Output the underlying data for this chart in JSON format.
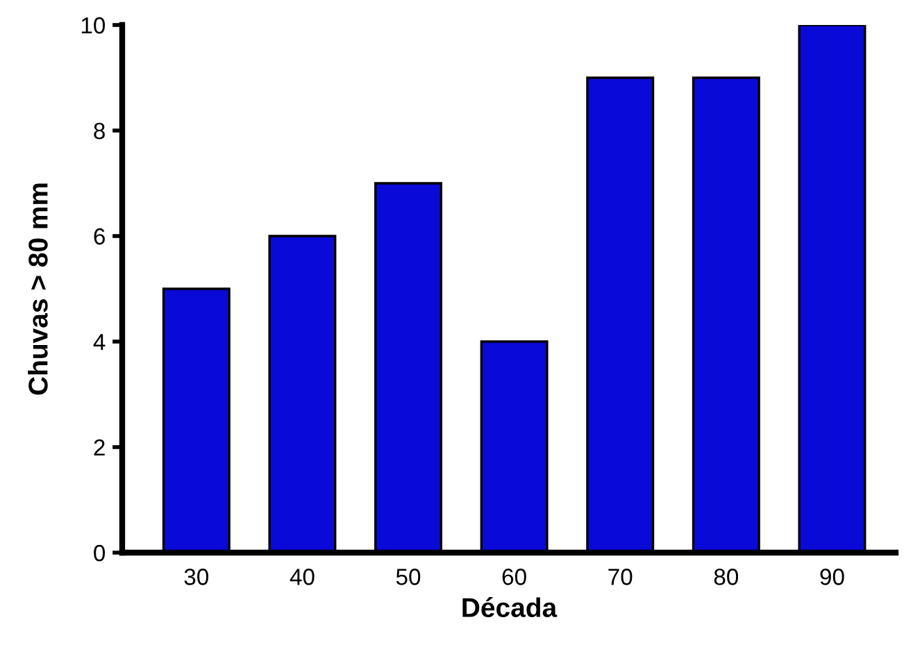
{
  "chart_data": {
    "type": "bar",
    "xlabel": "Década",
    "ylabel": "Chuvas > 80 mm",
    "categories": [
      "30",
      "40",
      "50",
      "60",
      "70",
      "80",
      "90"
    ],
    "values": [
      5,
      6,
      7,
      4,
      9,
      9,
      10
    ],
    "color": "#0a0ad8",
    "ylim": [
      0,
      10
    ],
    "yticks": [
      0,
      2,
      4,
      6,
      8,
      10
    ],
    "grid": false
  }
}
